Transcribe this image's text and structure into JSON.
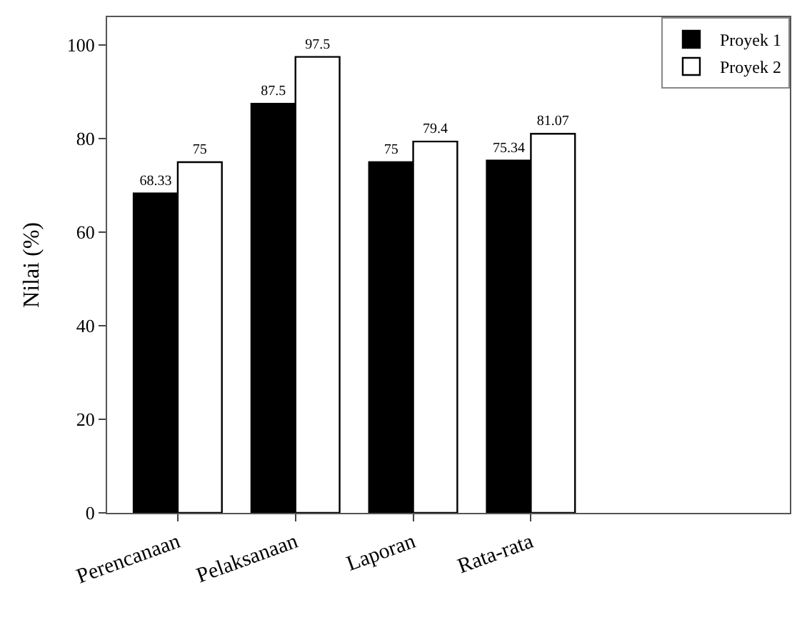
{
  "chart_data": {
    "type": "bar",
    "ylabel": "Nilai (%)",
    "categories": [
      "Perencanaan",
      "Pelaksanaan",
      "Laporan",
      "Rata-rata"
    ],
    "series": [
      {
        "name": "Proyek 1",
        "color": "#000000",
        "values": [
          68.33,
          87.5,
          75,
          75.34
        ]
      },
      {
        "name": "Proyek 2",
        "color": "#ffffff",
        "values": [
          75,
          97.5,
          79.4,
          81.07
        ]
      }
    ],
    "ylim": [
      0,
      106
    ],
    "yticks": [
      0,
      20,
      40,
      60,
      80,
      100
    ],
    "data_labels": true,
    "legend": "top right"
  }
}
